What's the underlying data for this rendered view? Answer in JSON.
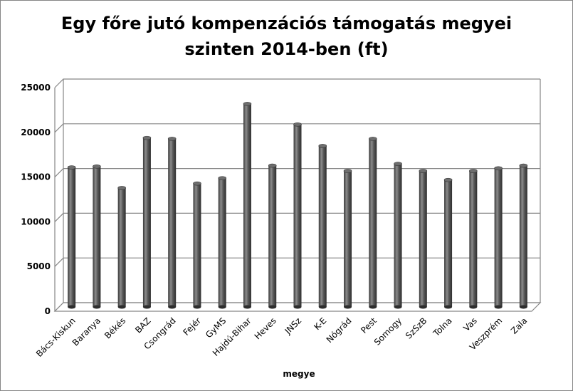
{
  "chart_data": {
    "type": "bar",
    "title_line1": "Egy főre jutó kompenzációs támogatás megyei",
    "title_line2": "szinten 2014-ben (ft)",
    "xlabel": "megye",
    "ylabel": "",
    "ylim": [
      0,
      25000
    ],
    "yticks": [
      "0",
      "5000",
      "10000",
      "15000",
      "20000",
      "25000"
    ],
    "categories": [
      "Bács-Kiskun",
      "Baranya",
      "Békés",
      "BAZ",
      "Csongrád",
      "Fejér",
      "GyMS",
      "Hajdú-Bihar",
      "Heves",
      "JNSz",
      "K-E",
      "Nógrád",
      "Pest",
      "Somogy",
      "SzSzB",
      "Tolna",
      "Vas",
      "Veszprém",
      "Zala"
    ],
    "values": [
      15600,
      15700,
      13300,
      18900,
      18800,
      13800,
      14400,
      22700,
      15800,
      20400,
      18000,
      15200,
      18800,
      16000,
      15200,
      14200,
      15200,
      15500,
      15800
    ],
    "grid": true,
    "legend": "none",
    "colors": {
      "bar": "#404040",
      "bar_highlight": "#8c8c8c",
      "grid": "#868686",
      "wall": "#ffffff"
    }
  }
}
